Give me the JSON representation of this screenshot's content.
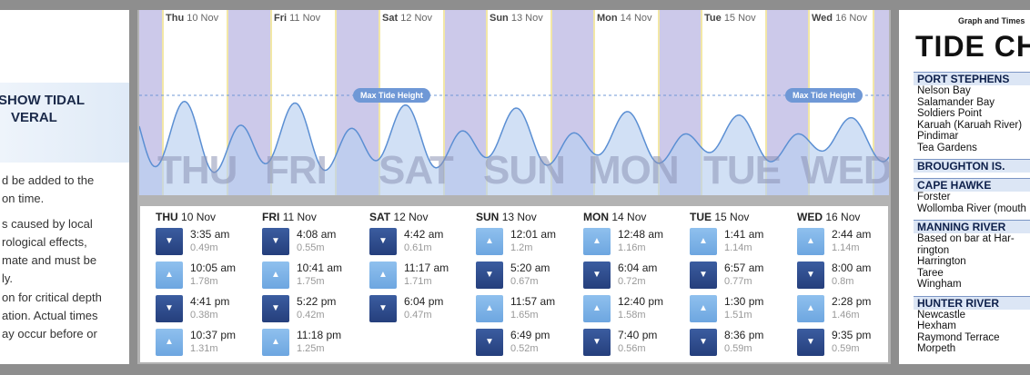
{
  "left_panel": {
    "heading_line1": "SHOW TIDAL",
    "heading_line2": "VERAL",
    "para1": [
      "d be added to the",
      "on time."
    ],
    "para2": [
      "s caused by local",
      "rological effects,",
      "mate and must be",
      "ly."
    ],
    "para3": [
      "on for critical depth",
      "ation. Actual times",
      "ay occur before or"
    ]
  },
  "graph": {
    "max_tide_label": "Max Tide Height",
    "days": [
      {
        "abbr": "Thu",
        "date": "10 Nov",
        "big": "THU"
      },
      {
        "abbr": "Fri",
        "date": "11 Nov",
        "big": "FRI"
      },
      {
        "abbr": "Sat",
        "date": "12 Nov",
        "big": "SAT"
      },
      {
        "abbr": "Sun",
        "date": "13 Nov",
        "big": "SUN"
      },
      {
        "abbr": "Mon",
        "date": "14 Nov",
        "big": "MON"
      },
      {
        "abbr": "Tue",
        "date": "15 Nov",
        "big": "TUE"
      },
      {
        "abbr": "Wed",
        "date": "16 Nov",
        "big": "WED"
      }
    ],
    "colors": {
      "background": "#ccc9ea",
      "day": "#ffffff",
      "wave_line": "#5b8fd3",
      "wave_fill": "#b9cff0"
    }
  },
  "tide_table": {
    "days": [
      {
        "day": "THU",
        "date": "10 Nov",
        "tides": [
          {
            "type": "low",
            "time": "3:35 am",
            "height": "0.49m"
          },
          {
            "type": "high",
            "time": "10:05 am",
            "height": "1.78m"
          },
          {
            "type": "low",
            "time": "4:41 pm",
            "height": "0.38m"
          },
          {
            "type": "high",
            "time": "10:37 pm",
            "height": "1.31m"
          }
        ]
      },
      {
        "day": "FRI",
        "date": "11 Nov",
        "tides": [
          {
            "type": "low",
            "time": "4:08 am",
            "height": "0.55m"
          },
          {
            "type": "high",
            "time": "10:41 am",
            "height": "1.75m"
          },
          {
            "type": "low",
            "time": "5:22 pm",
            "height": "0.42m"
          },
          {
            "type": "high",
            "time": "11:18 pm",
            "height": "1.25m"
          }
        ]
      },
      {
        "day": "SAT",
        "date": "12 Nov",
        "tides": [
          {
            "type": "low",
            "time": "4:42 am",
            "height": "0.61m"
          },
          {
            "type": "high",
            "time": "11:17 am",
            "height": "1.71m"
          },
          {
            "type": "low",
            "time": "6:04 pm",
            "height": "0.47m"
          }
        ]
      },
      {
        "day": "SUN",
        "date": "13 Nov",
        "tides": [
          {
            "type": "high",
            "time": "12:01 am",
            "height": "1.2m"
          },
          {
            "type": "low",
            "time": "5:20 am",
            "height": "0.67m"
          },
          {
            "type": "high",
            "time": "11:57 am",
            "height": "1.65m"
          },
          {
            "type": "low",
            "time": "6:49 pm",
            "height": "0.52m"
          }
        ]
      },
      {
        "day": "MON",
        "date": "14 Nov",
        "tides": [
          {
            "type": "high",
            "time": "12:48 am",
            "height": "1.16m"
          },
          {
            "type": "low",
            "time": "6:04 am",
            "height": "0.72m"
          },
          {
            "type": "high",
            "time": "12:40 pm",
            "height": "1.58m"
          },
          {
            "type": "low",
            "time": "7:40 pm",
            "height": "0.56m"
          }
        ]
      },
      {
        "day": "TUE",
        "date": "15 Nov",
        "tides": [
          {
            "type": "high",
            "time": "1:41 am",
            "height": "1.14m"
          },
          {
            "type": "low",
            "time": "6:57 am",
            "height": "0.77m"
          },
          {
            "type": "high",
            "time": "1:30 pm",
            "height": "1.51m"
          },
          {
            "type": "low",
            "time": "8:36 pm",
            "height": "0.59m"
          }
        ]
      },
      {
        "day": "WED",
        "date": "16 Nov",
        "tides": [
          {
            "type": "high",
            "time": "2:44 am",
            "height": "1.14m"
          },
          {
            "type": "low",
            "time": "8:00 am",
            "height": "0.8m"
          },
          {
            "type": "high",
            "time": "2:28 pm",
            "height": "1.46m"
          },
          {
            "type": "low",
            "time": "9:35 pm",
            "height": "0.59m"
          }
        ]
      }
    ],
    "icons": {
      "high": "arrow-up-icon",
      "low": "arrow-down-icon"
    },
    "colors": {
      "high": "#7fb3e8",
      "low": "#2f4d8e"
    }
  },
  "right_panel": {
    "graph_title": "Graph and Times",
    "title": "TIDE CH",
    "regions": [
      {
        "name": "PORT STEPHENS",
        "places": [
          "Nelson Bay",
          "Salamander Bay",
          "Soldiers Point",
          "Karuah (Karuah River)",
          "Pindimar",
          "Tea Gardens"
        ]
      },
      {
        "name": "BROUGHTON IS.",
        "places": []
      },
      {
        "name": "CAPE HAWKE",
        "places": [
          "Forster",
          "Wollomba River (mouth"
        ]
      },
      {
        "name": "MANNING RIVER",
        "places": [
          "Based on bar at Har-",
          "rington",
          "Harrington",
          "Taree",
          "Wingham"
        ]
      },
      {
        "name": "HUNTER RIVER",
        "places": [
          "Newcastle",
          "Hexham",
          "Raymond Terrace",
          "Morpeth"
        ]
      }
    ]
  }
}
